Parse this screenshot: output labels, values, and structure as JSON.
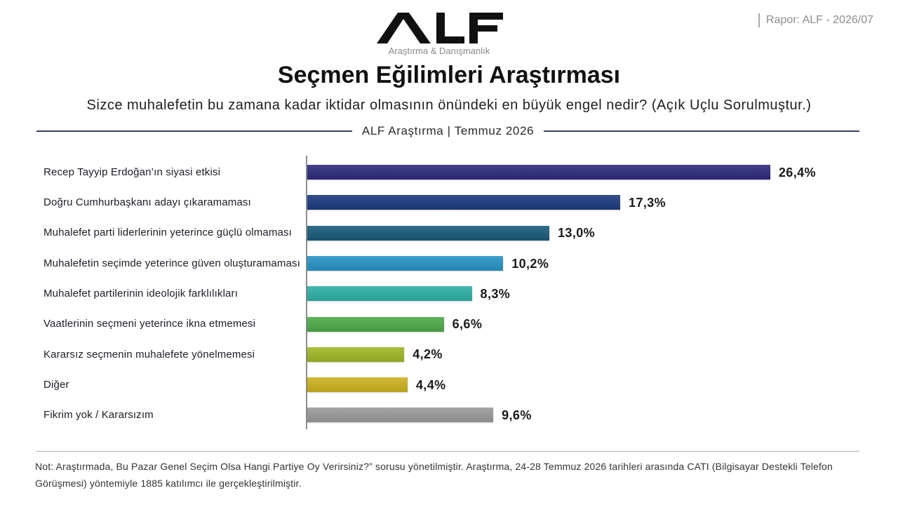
{
  "header": {
    "logo_text": "ALF",
    "logo_tagline": "Araştırma & Danışmanlık",
    "report_id": "Rapor: ALF - 2026/07",
    "divider_text": "ALF Araştırma | Temmuz 2026"
  },
  "chart_data": {
    "type": "bar",
    "orientation": "horizontal",
    "title": "Seçmen Eğilimleri Araştırması",
    "subtitle": "Sizce muhalefetin bu zamana kadar iktidar olmasının önündeki en büyük engel nedir? (Açık Uçlu Sorulmuştur.)",
    "categories": [
      "Recep Tayyip Erdoğan’ın siyasi etkisi",
      "Doğru Cumhurbaşkanı adayı çıkaramaması",
      "Muhalefet parti liderlerinin yeterince güçlü olmaması",
      "Muhalefetin seçimde yeterince güven oluşturamaması",
      "Muhalefet partilerinin ideolojik farklılıkları",
      "Vaatlerinin seçmeni yeterince ikna etmemesi",
      "Kararsız seçmenin muhalefete yönelmemesi",
      "Diğer",
      "Fikrim yok / Kararsızım"
    ],
    "values": [
      26.4,
      17.3,
      13.0,
      10.2,
      8.3,
      6.6,
      4.2,
      4.4,
      9.6
    ],
    "value_labels": [
      "26,4%",
      "17,3%",
      "13,0%",
      "10,2%",
      "8,3%",
      "6,6%",
      "4,2%",
      "4,4%",
      "9,6%"
    ],
    "colors": [
      "#2e2b7d",
      "#1d3b7e",
      "#1b5b7a",
      "#2894c6",
      "#2eb0a6",
      "#4eaa48",
      "#a0b828",
      "#ccb21e",
      "#9a9a9a"
    ],
    "grid": false,
    "legend": "none"
  },
  "footnote": "Not: Araştırmada, Bu Pazar Genel Seçim Olsa Hangi Partiye Oy Verirsiniz?” sorusu yönetilmiştir. Araştırma, 24-28 Temmuz 2026 tarihleri arasında CATI (Bilgisayar Destekli Telefon Görüşmesi) yöntemiyle 1885 katılımcı ile gerçekleştirilmiştir."
}
